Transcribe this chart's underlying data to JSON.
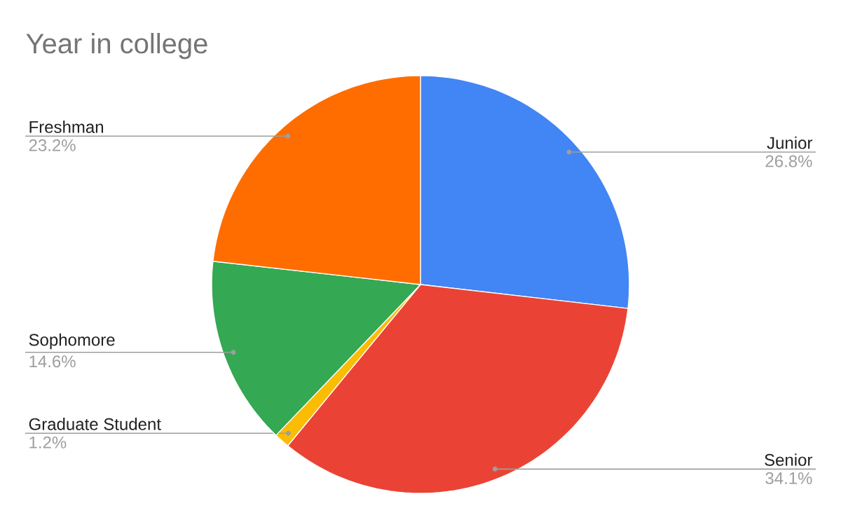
{
  "chart_data": {
    "type": "pie",
    "title": "Year in college",
    "categories": [
      "Junior",
      "Senior",
      "Graduate Student",
      "Sophomore",
      "Freshman"
    ],
    "values": [
      26.8,
      34.1,
      1.2,
      14.6,
      23.2
    ],
    "value_labels": [
      "26.8%",
      "34.1%",
      "1.2%",
      "14.6%",
      "23.2%"
    ],
    "colors": [
      "#4285f4",
      "#ea4335",
      "#fbbc04",
      "#34a853",
      "#ff6d01"
    ]
  }
}
